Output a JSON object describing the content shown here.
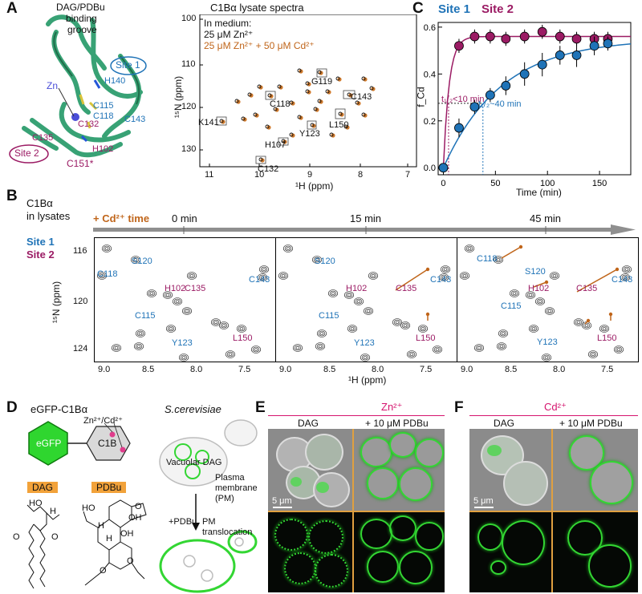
{
  "panel_letters": {
    "a": "A",
    "b": "B",
    "c": "C",
    "d": "D",
    "e": "E",
    "f": "F"
  },
  "panel_a": {
    "groove_label_1": "DAG/PDBu",
    "groove_label_2": "binding",
    "groove_label_3": "groove",
    "site1_label": "Site 1",
    "site2_label": "Site 2",
    "zn_label": "Zn",
    "residues": {
      "h140": "H140",
      "c115": "C115",
      "c118": "C118",
      "c143": "C143",
      "c135": "C135",
      "c132": "C132",
      "h102": "H102",
      "c151": "C151*"
    }
  },
  "panel_a2": {
    "title": "C1Bα lysate spectra",
    "legend_header": "In medium:",
    "legend_zn": "25 μM Zn²⁺",
    "legend_cd": "25 μM Zn²⁺ + 50 μM Cd²⁺",
    "xlabel": "¹H (ppm)",
    "ylabel": "¹⁵N (ppm)",
    "xticks": [
      "11",
      "10",
      "9",
      "8",
      "7"
    ],
    "yticks": [
      "100",
      "110",
      "120",
      "130"
    ],
    "peaks": {
      "g119": "G119",
      "c118": "C118",
      "c143": "C143",
      "k141": "K141",
      "l150": "L150",
      "y123": "Y123",
      "h107": "H107",
      "c132": "C132"
    }
  },
  "chart_data": {
    "type": "scatter",
    "title": "",
    "xlabel": "Time (min)",
    "ylabel": "f_Cd",
    "xlim": [
      -5,
      180
    ],
    "ylim": [
      -0.03,
      0.62
    ],
    "xticks": [
      "0",
      "50",
      "100",
      "150"
    ],
    "yticks": [
      "0.0",
      "0.2",
      "0.4",
      "0.6"
    ],
    "series": [
      {
        "name": "Site 1",
        "color": "#1f73b7",
        "x": [
          0,
          15,
          30,
          45,
          60,
          78,
          95,
          112,
          128,
          145,
          158
        ],
        "y": [
          0.0,
          0.17,
          0.26,
          0.31,
          0.35,
          0.4,
          0.44,
          0.48,
          0.48,
          0.52,
          0.53
        ],
        "err": [
          0.01,
          0.04,
          0.03,
          0.03,
          0.04,
          0.05,
          0.05,
          0.04,
          0.05,
          0.04,
          0.03
        ]
      },
      {
        "name": "Site 2",
        "color": "#9b1b64",
        "x": [
          0,
          15,
          30,
          45,
          60,
          78,
          95,
          112,
          128,
          145,
          158
        ],
        "y": [
          0.0,
          0.52,
          0.56,
          0.56,
          0.55,
          0.56,
          0.58,
          0.56,
          0.55,
          0.55,
          0.55
        ],
        "err": [
          0.01,
          0.03,
          0.03,
          0.03,
          0.03,
          0.03,
          0.03,
          0.03,
          0.03,
          0.03,
          0.03
        ]
      }
    ],
    "annotations": {
      "site2_half": "t₁/₂<10 min",
      "site1_half": "t₁/₂~40 min"
    }
  },
  "panel_b": {
    "title_1": "C1Bα",
    "title_2": "in lysates",
    "site1_label": "Site 1",
    "site2_label": "Site 2",
    "cd_label": "+ Cd²⁺ time",
    "time_labels": [
      "0 min",
      "15 min",
      "45 min"
    ],
    "xticks": [
      "9.0",
      "8.5",
      "8.0",
      "7.5"
    ],
    "yticks": [
      "116",
      "120",
      "124"
    ],
    "xlabel": "¹H (ppm)",
    "ylabel": "¹⁵N (ppm)",
    "peaks": {
      "s120": "S120",
      "c118": "C118",
      "h102": "H102",
      "c135": "C135",
      "c143": "C143",
      "c115": "C115",
      "y123": "Y123",
      "l150": "L150"
    }
  },
  "panel_d": {
    "construct": "eGFP-C1Bα",
    "organism": "S.cerevisiae",
    "egfp_label": "eGFP",
    "c1b_label": "C1B",
    "metal_label": "Zn²⁺/Cd²⁺",
    "dag_label": "DAG",
    "pdbu_label": "PDBu",
    "vacuolar_label": "Vacuolar DAG",
    "pm_label_1": "Plasma",
    "pm_label_2": "membrane",
    "pm_label_3": "(PM)",
    "pdbu_add": "+PDBu",
    "translocation_1": "PM",
    "translocation_2": "translocation",
    "ho_labels": [
      "HO",
      "H",
      "HO",
      "OH",
      "OH",
      "O",
      "H",
      "H",
      "O",
      "O",
      "O",
      "O"
    ]
  },
  "panel_e": {
    "header": "Zn²⁺",
    "col1": "DAG",
    "col2": "+ 10 μM PDBu",
    "scale": "5 μm"
  },
  "panel_f": {
    "header": "Cd²⁺",
    "col1": "DAG",
    "col2": "+ 10 μM PDBu",
    "scale": "5 μm"
  },
  "colors": {
    "site1": "#1f73b7",
    "site2": "#9b1b64",
    "cd_orange": "#c0651a",
    "protein_green": "#2e9e6e",
    "gfp": "#33d633",
    "accent_pink": "#d5146e"
  }
}
